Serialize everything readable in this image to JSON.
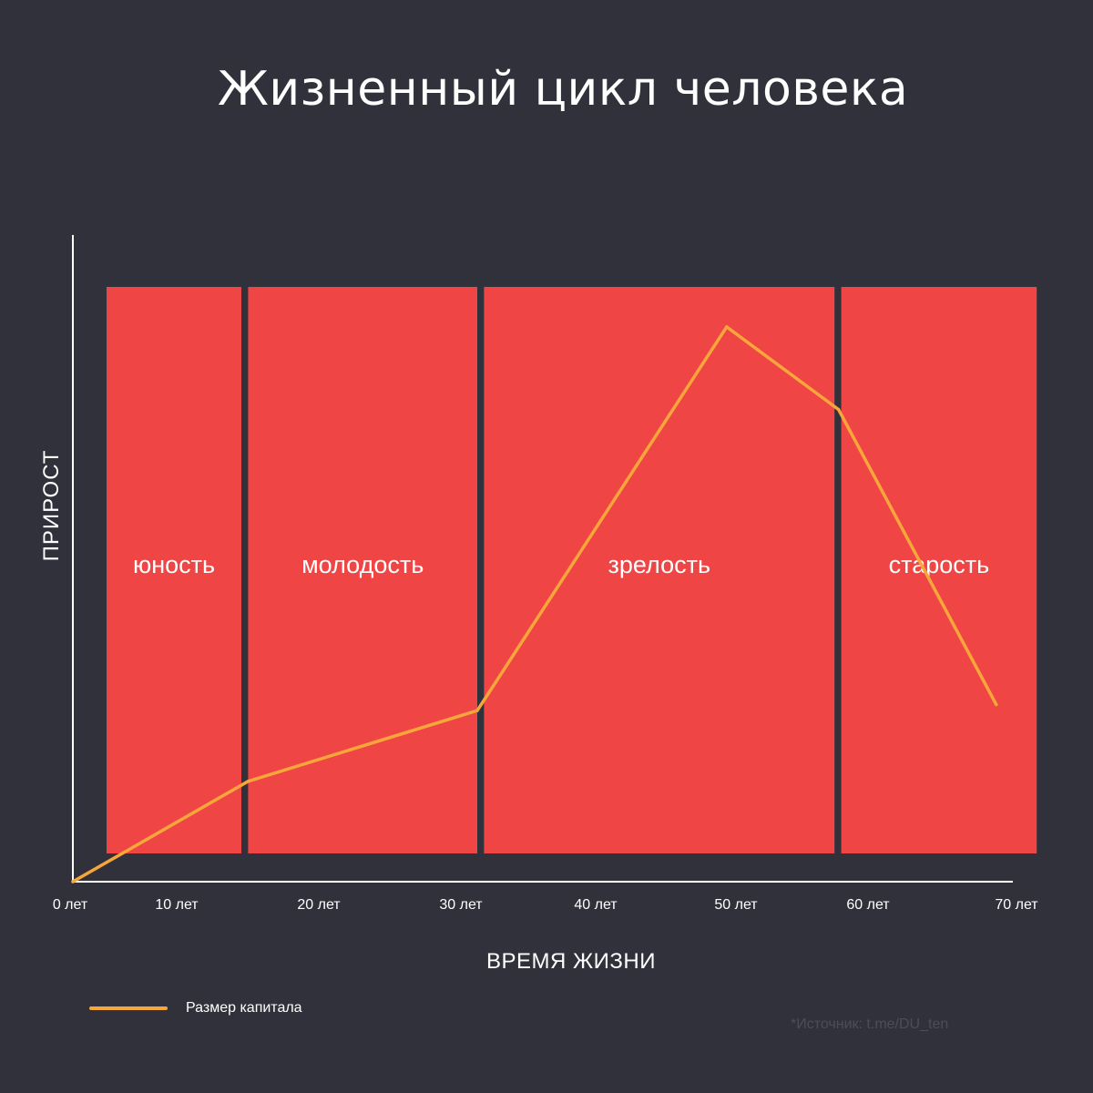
{
  "colors": {
    "background": "#31313c",
    "period_fill": "#f04545",
    "line": "#f7a63a",
    "axis": "#ffffff",
    "text": "#ffffff",
    "source_text": "#4d4d58"
  },
  "chart_data": {
    "type": "line",
    "title": "Жизненный цикл человека",
    "xlabel": "ВРЕМЯ ЖИЗНИ",
    "ylabel": "ПРИРОСТ",
    "x_ticks": [
      {
        "value": 0,
        "label": "0 лет"
      },
      {
        "value": 10,
        "label": "10 лет"
      },
      {
        "value": 20,
        "label": "20 лет"
      },
      {
        "value": 30,
        "label": "30 лет"
      },
      {
        "value": 40,
        "label": "40 лет"
      },
      {
        "value": 50,
        "label": "50 лет"
      },
      {
        "value": 60,
        "label": "60 лет"
      },
      {
        "value": 70,
        "label": "70 лет"
      }
    ],
    "xlim": [
      0,
      70
    ],
    "ylim": [
      0,
      100
    ],
    "periods": [
      {
        "label": "юность",
        "start": 2.5,
        "end": 12.5
      },
      {
        "label": "молодость",
        "start": 13.0,
        "end": 30.0
      },
      {
        "label": "зрелость",
        "start": 30.5,
        "end": 56.5
      },
      {
        "label": "старость",
        "start": 57.0,
        "end": 71.5
      }
    ],
    "series": [
      {
        "name": "Размер капитала",
        "points": [
          {
            "x": 0,
            "y": 0
          },
          {
            "x": 13,
            "y": 17
          },
          {
            "x": 30,
            "y": 29
          },
          {
            "x": 48.5,
            "y": 94
          },
          {
            "x": 56.8,
            "y": 80
          },
          {
            "x": 68.5,
            "y": 30
          }
        ]
      }
    ],
    "grid": false,
    "legend_position": "bottom-left"
  },
  "legend": {
    "label": "Размер капитала"
  },
  "source": "*Источник: t.me/DU_ten"
}
